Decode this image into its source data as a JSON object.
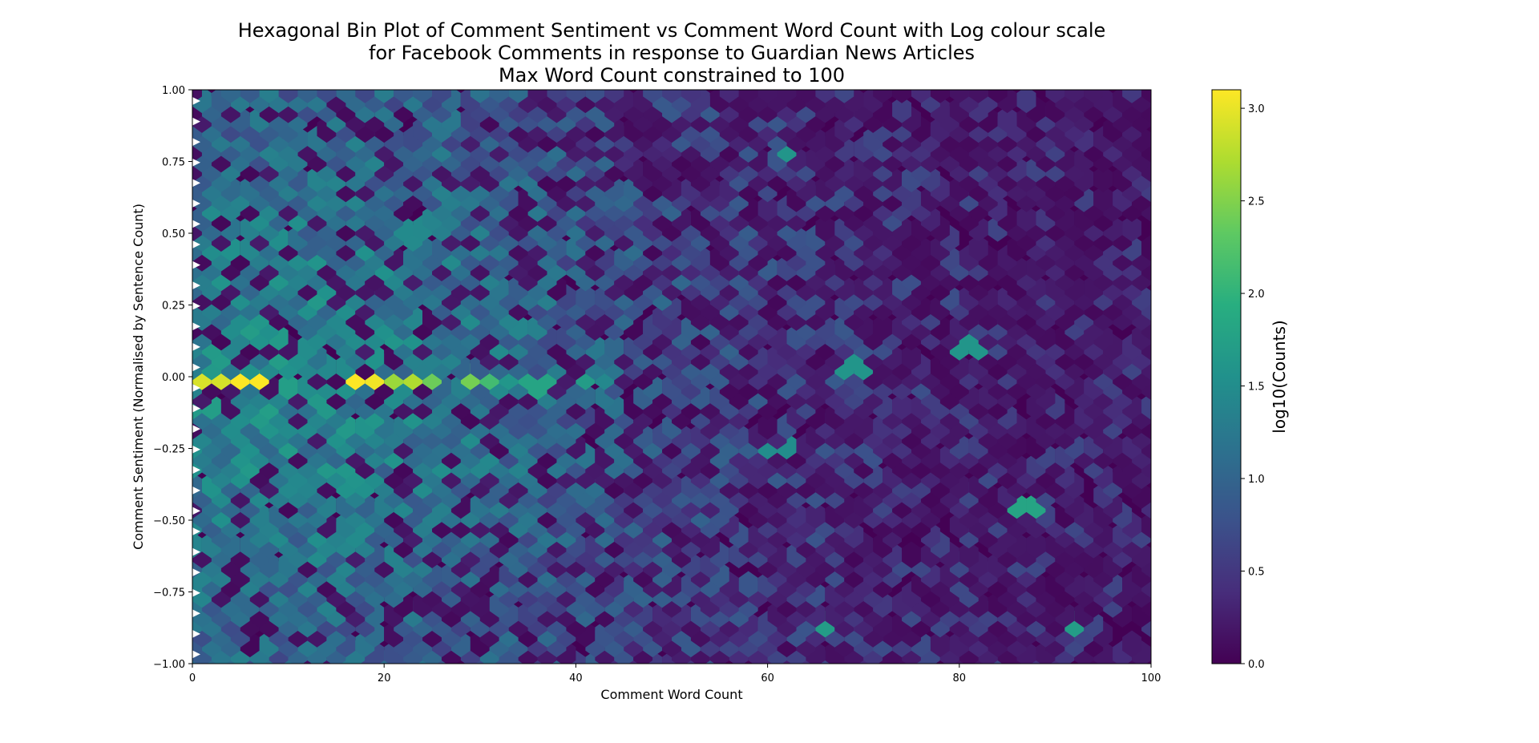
{
  "chart_data": {
    "type": "heatmap",
    "subtype": "hexbin",
    "title_lines": [
      "Hexagonal Bin Plot of Comment Sentiment vs Comment Word Count with Log colour scale",
      "for Facebook Comments in response to Guardian News Articles",
      "Max Word Count constrained to 100"
    ],
    "xlabel": "Comment Word Count",
    "ylabel": "Comment Sentiment (Normalised by Sentence Count)",
    "xlim": [
      0,
      100
    ],
    "ylim": [
      -1.0,
      1.0
    ],
    "xticks": [
      "0",
      "20",
      "40",
      "60",
      "80",
      "100"
    ],
    "yticks": [
      "−1.00",
      "−0.75",
      "−0.50",
      "−0.25",
      "0.00",
      "0.25",
      "0.50",
      "0.75",
      "1.00"
    ],
    "colorbar": {
      "label": "log10(Counts)",
      "range": [
        0,
        3.1
      ],
      "ticks": [
        "0.0",
        "0.5",
        "1.0",
        "1.5",
        "2.0",
        "2.5",
        "3.0"
      ],
      "colormap": "viridis"
    },
    "grid": false,
    "approx_density_features": {
      "zero_sentiment_row_peak": {
        "y": 0.0,
        "x_range": [
          0,
          30
        ],
        "max_log10_count": 3.1
      },
      "dense_region": {
        "x_range": [
          0,
          40
        ],
        "y_range": [
          -0.6,
          0.7
        ],
        "log10_count": 1.3
      },
      "sparse_region": {
        "x_range": [
          60,
          100
        ],
        "log10_count": 0.3
      },
      "isolated_bins": [
        {
          "x": 62,
          "y": 0.78,
          "log10_count": 1.6
        },
        {
          "x": 36,
          "y": -0.02,
          "log10_count": 1.8
        },
        {
          "x": 87,
          "y": -0.45,
          "log10_count": 1.8
        },
        {
          "x": 66,
          "y": -0.85,
          "log10_count": 1.7
        },
        {
          "x": 92,
          "y": -0.85,
          "log10_count": 1.7
        },
        {
          "x": 81,
          "y": 0.12,
          "log10_count": 1.6
        },
        {
          "x": 69,
          "y": 0.05,
          "log10_count": 1.6
        },
        {
          "x": 61,
          "y": -0.24,
          "log10_count": 1.5
        }
      ]
    }
  }
}
